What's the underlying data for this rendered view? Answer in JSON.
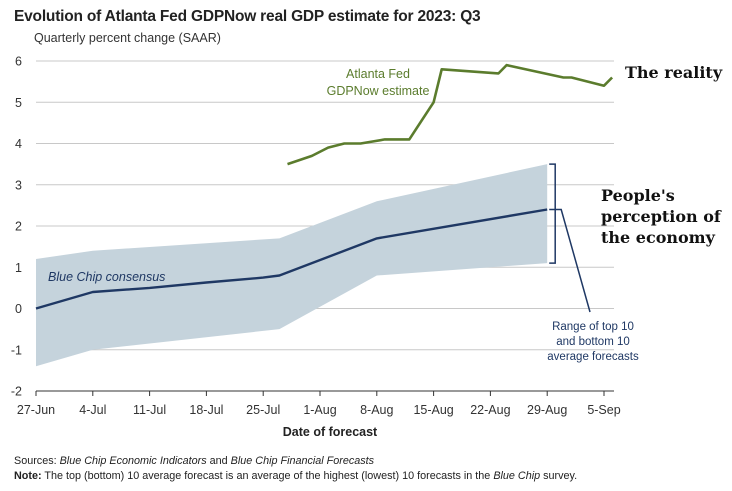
{
  "title": "Evolution of Atlanta Fed GDPNow real GDP estimate for 2023: Q3",
  "subtitle": "Quarterly percent change (SAAR)",
  "chart_data": {
    "type": "line",
    "xlabel": "Date of forecast",
    "ylabel": "",
    "ylim": [
      -2,
      6
    ],
    "y_ticks": [
      "6",
      "5",
      "4",
      "3",
      "2",
      "1",
      "0",
      "-1",
      "-2"
    ],
    "x_ticks": [
      "27-Jun",
      "4-Jul",
      "11-Jul",
      "18-Jul",
      "25-Jul",
      "1-Aug",
      "8-Aug",
      "15-Aug",
      "22-Aug",
      "29-Aug",
      "5-Sep"
    ],
    "grid": true,
    "series": [
      {
        "name": "Atlanta Fed GDPNow estimate",
        "color": "#5b7c2d",
        "points": [
          [
            "Jul 28",
            3.5
          ],
          [
            "Jul 31",
            3.7
          ],
          [
            "Aug 2",
            3.9
          ],
          [
            "Aug 4",
            4.0
          ],
          [
            "Aug 6",
            4.0
          ],
          [
            "Aug 9",
            4.1
          ],
          [
            "Aug 12",
            4.1
          ],
          [
            "Aug 15",
            5.0
          ],
          [
            "Aug 16",
            5.8
          ],
          [
            "Aug 23",
            5.7
          ],
          [
            "Aug 24",
            5.9
          ],
          [
            "Aug 31",
            5.6
          ],
          [
            "Sep 1",
            5.6
          ],
          [
            "Sep 5",
            5.4
          ],
          [
            "Sep 6",
            5.6
          ]
        ]
      },
      {
        "name": "Blue Chip consensus",
        "color": "#1f3864",
        "points": [
          [
            "Jun 27",
            0.0
          ],
          [
            "Jul 4",
            0.4
          ],
          [
            "Jul 11",
            0.5
          ],
          [
            "Jul 18",
            0.63
          ],
          [
            "Jul 25",
            0.75
          ],
          [
            "Jul 27",
            0.8
          ],
          [
            "Aug 8",
            1.7
          ],
          [
            "Aug 29",
            2.4
          ]
        ]
      }
    ],
    "band": {
      "name": "Range of top 10 and bottom 10 average forecasts",
      "color": "#c5d3dc",
      "upper": [
        [
          "Jun 27",
          1.2
        ],
        [
          "Jul 4",
          1.4
        ],
        [
          "Jul 27",
          1.7
        ],
        [
          "Aug 8",
          2.6
        ],
        [
          "Aug 29",
          3.5
        ]
      ],
      "lower": [
        [
          "Jun 27",
          -1.4
        ],
        [
          "Jul 4",
          -1.0
        ],
        [
          "Jul 27",
          -0.5
        ],
        [
          "Aug 8",
          0.8
        ],
        [
          "Aug 29",
          1.1
        ]
      ]
    },
    "annotations": {
      "gdpnow_label": [
        "Atlanta Fed",
        "GDPNow estimate"
      ],
      "bluechip_label": "Blue Chip consensus",
      "range_label": [
        "Range of top 10",
        "and bottom 10",
        "average forecasts"
      ],
      "reality_label": "The reality",
      "perception_label": [
        "People's",
        "perception of",
        "the economy"
      ]
    }
  },
  "notes": {
    "sources_label": "Sources:",
    "sources_italic_1": "Blue Chip Economic Indicators",
    "sources_and": " and ",
    "sources_italic_2": "Blue Chip Financial Forecasts",
    "note_label": "Note:",
    "note_text": " The top (bottom) 10 average forecast is an average of the highest (lowest) 10 forecasts in the ",
    "note_italic": "Blue Chip",
    "note_end": " survey."
  },
  "colors": {
    "gdpnow": "#5b7c2d",
    "bluechip": "#1f3864",
    "band": "#c5d3dc",
    "grid": "#c8c8c8"
  }
}
